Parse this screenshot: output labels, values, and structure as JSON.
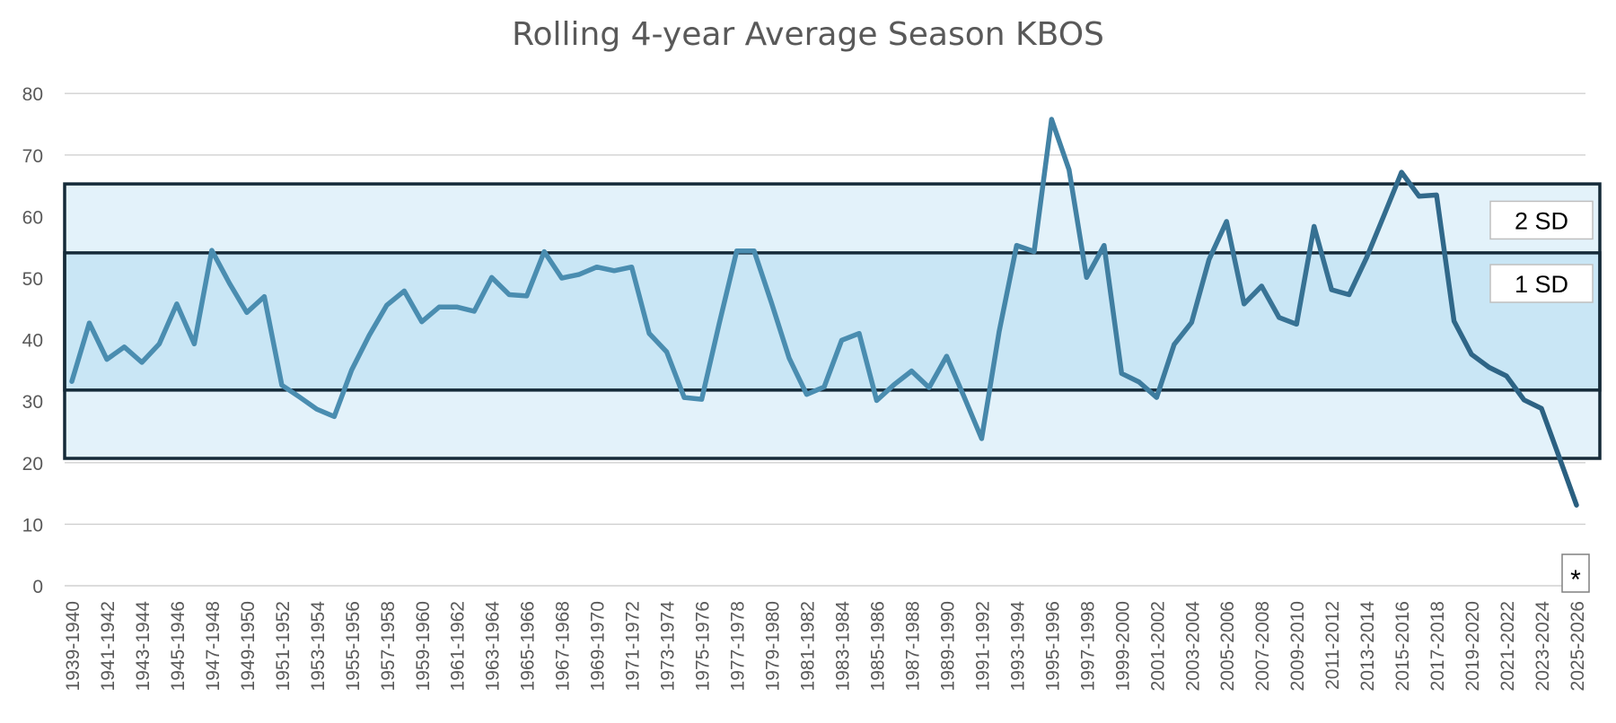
{
  "chart_data": {
    "type": "line",
    "title": "Rolling 4-year Average Season  KBOS",
    "xlabel": "",
    "ylabel": "",
    "ylim": [
      0,
      80
    ],
    "yticks": [
      0,
      10,
      20,
      30,
      40,
      50,
      60,
      70,
      80
    ],
    "grid": true,
    "categories": [
      "1939-1940",
      "1940-1941",
      "1941-1942",
      "1942-1943",
      "1943-1944",
      "1944-1945",
      "1945-1946",
      "1946-1947",
      "1947-1948",
      "1948-1949",
      "1949-1950",
      "1950-1951",
      "1951-1952",
      "1952-1953",
      "1953-1954",
      "1954-1955",
      "1955-1956",
      "1956-1957",
      "1957-1958",
      "1958-1959",
      "1959-1960",
      "1960-1961",
      "1961-1962",
      "1962-1963",
      "1963-1964",
      "1964-1965",
      "1965-1966",
      "1966-1967",
      "1967-1968",
      "1968-1969",
      "1969-1970",
      "1970-1971",
      "1971-1972",
      "1972-1973",
      "1973-1974",
      "1974-1975",
      "1975-1976",
      "1976-1977",
      "1977-1978",
      "1978-1979",
      "1979-1980",
      "1980-1981",
      "1981-1982",
      "1982-1983",
      "1983-1984",
      "1984-1985",
      "1985-1986",
      "1986-1987",
      "1987-1988",
      "1988-1989",
      "1989-1990",
      "1990-1991",
      "1991-1992",
      "1992-1993",
      "1993-1994",
      "1994-1995",
      "1995-1996",
      "1996-1997",
      "1997-1998",
      "1998-1999",
      "1999-2000",
      "2000-2001",
      "2001-2002",
      "2002-2003",
      "2003-2004",
      "2004-2005",
      "2005-2006",
      "2006-2007",
      "2007-2008",
      "2008-2009",
      "2009-2010",
      "2010-2011",
      "2011-2012",
      "2012-2013",
      "2013-2014",
      "2014-2015",
      "2015-2016",
      "2016-2017",
      "2017-2018",
      "2018-2019",
      "2019-2020",
      "2020-2021",
      "2021-2022",
      "2022-2023",
      "2023-2024",
      "2024-2025",
      "2025-2026"
    ],
    "tick_labels": [
      "1939-1940",
      "1941-1942",
      "1943-1944",
      "1945-1946",
      "1947-1948",
      "1949-1950",
      "1951-1952",
      "1953-1954",
      "1955-1956",
      "1957-1958",
      "1959-1960",
      "1961-1962",
      "1963-1964",
      "1965-1966",
      "1967-1968",
      "1969-1970",
      "1971-1972",
      "1973-1974",
      "1975-1976",
      "1977-1978",
      "1979-1980",
      "1981-1982",
      "1983-1984",
      "1985-1986",
      "1987-1988",
      "1989-1990",
      "1991-1992",
      "1993-1994",
      "1995-1996",
      "1997-1998",
      "1999-2000",
      "2001-2002",
      "2003-2004",
      "2005-2006",
      "2007-2008",
      "2009-2010",
      "2011-2012",
      "2013-2014",
      "2015-2016",
      "2017-2018",
      "2019-2020",
      "2021-2022",
      "2023-2024",
      "2025-2026"
    ],
    "series": [
      {
        "values": [
          33.2,
          42.7,
          36.8,
          38.8,
          36.3,
          39.3,
          45.8,
          39.3,
          54.5,
          49.2,
          44.4,
          47.0,
          32.6,
          30.7,
          28.7,
          27.5,
          35.1,
          40.7,
          45.6,
          47.9,
          42.9,
          45.3,
          45.3,
          44.6,
          50.1,
          47.3,
          47.1,
          54.3,
          50.0,
          50.6,
          51.8,
          51.2,
          51.8,
          41.0,
          38.0,
          30.6,
          30.3,
          42.6,
          54.4,
          54.4,
          45.9,
          37.0,
          31.1,
          32.3,
          39.9,
          41.0,
          30.1,
          32.7,
          34.9,
          32.2,
          37.3,
          30.7,
          23.9,
          41.3,
          55.3,
          54.3,
          75.8,
          67.6,
          50.1,
          55.3,
          34.5,
          33.1,
          30.6,
          39.2,
          42.8,
          53.0,
          59.2,
          45.8,
          48.7,
          43.6,
          42.5,
          58.4,
          48.1,
          47.3,
          53.3,
          60.2,
          67.2,
          63.3,
          63.5,
          43.0,
          37.6,
          35.5,
          34.1,
          30.2,
          28.8,
          21.0,
          13.1
        ]
      }
    ],
    "bands": [
      {
        "label": "2 SD",
        "lower": 20.7,
        "upper": 65.3
      },
      {
        "label": "1 SD",
        "lower": 31.8,
        "upper": 54.1
      }
    ],
    "annotations": [
      "*"
    ],
    "colors": {
      "line_early": "#4a8db0",
      "line_late": "#2a5f80",
      "band_outer": "#e3f2fa",
      "band_inner": "#c9e6f5",
      "band_border": "#152a38",
      "grid": "#d0d0d0",
      "text": "#595959"
    }
  }
}
